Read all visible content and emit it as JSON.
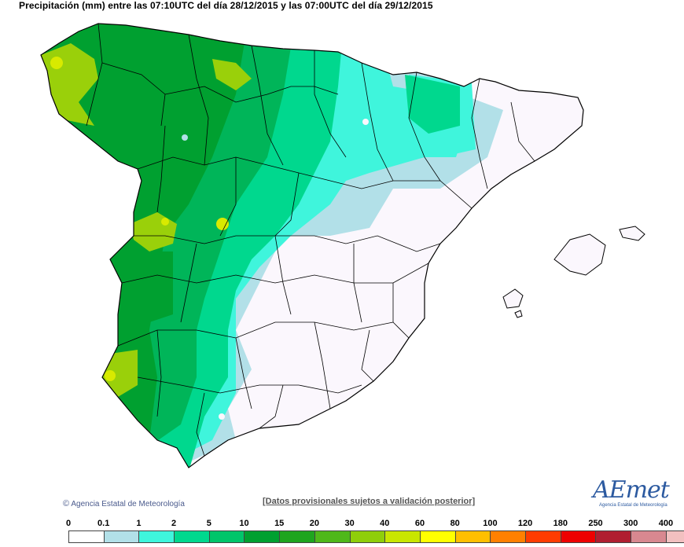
{
  "header": {
    "title": "Precipitación (mm) entre las 07:10UTC del día 28/12/2015 y las 07:00UTC del día 29/12/2015"
  },
  "footer": {
    "copyright_symbol": "©",
    "agency": "Agencia Estatal de Meteorología",
    "note": "[Datos provisionales sujetos a validación posterior]",
    "logo_text": "AEmet",
    "logo_sub": "Agencia Estatal de Meteorología"
  },
  "legend": {
    "ticks": [
      "0",
      "0.1",
      "1",
      "2",
      "5",
      "10",
      "15",
      "20",
      "30",
      "40",
      "60",
      "80",
      "100",
      "120",
      "180",
      "250",
      "300",
      "400"
    ],
    "colors": [
      "#ffffff",
      "#b2e0e8",
      "#3ff5dc",
      "#00d88e",
      "#00c56a",
      "#00a030",
      "#1fa51f",
      "#4fb81a",
      "#8fce0a",
      "#c9e600",
      "#ffff00",
      "#ffbf00",
      "#ff8000",
      "#ff3c00",
      "#ee0000",
      "#b01e30",
      "#d88890",
      "#f2c0c0"
    ]
  },
  "map": {
    "colors": {
      "outline": "#000000",
      "white": "#fbf7fd",
      "light_blue": "#b2e0e8",
      "cyan": "#3ff5dc",
      "green1": "#00d88e",
      "green2": "#00b559",
      "green3": "#00a030",
      "yellowgreen": "#9ad00a",
      "yellow": "#d8ea00"
    }
  }
}
